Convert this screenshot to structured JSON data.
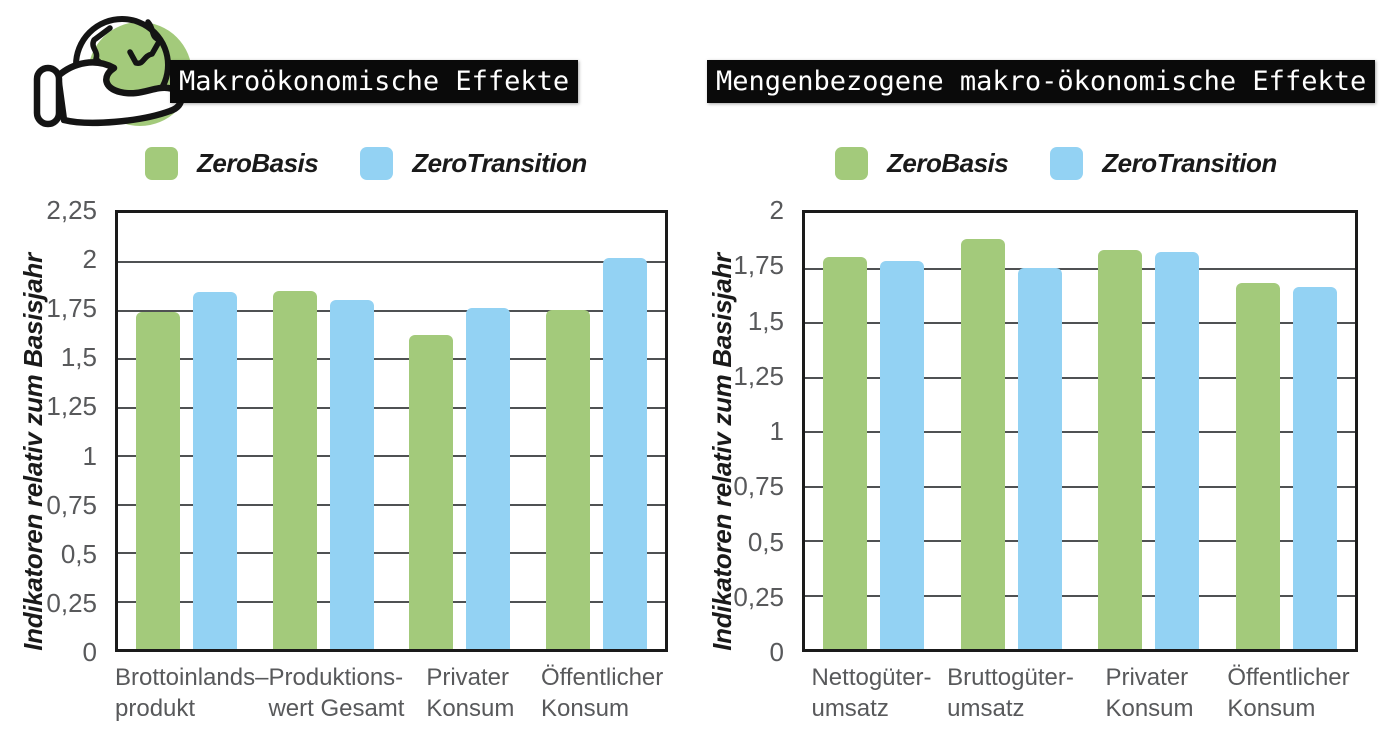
{
  "page": {
    "background": "#ffffff"
  },
  "colors": {
    "series_green": "#a3ca7b",
    "series_blue": "#93d2f3",
    "title_bg": "#0a0a0a",
    "title_text": "#ffffff",
    "axis_text": "#58595b",
    "label_text": "#1a1a1a",
    "gridline": "#4f5153",
    "plot_border": "#1a1a1a"
  },
  "icon": {
    "name": "hand-holding-globe",
    "circle_color": "#a3ca7b",
    "line_color": "#141414"
  },
  "legend": {
    "items": [
      {
        "label": "ZeroBasis",
        "color": "#a3ca7b"
      },
      {
        "label": "ZeroTransition",
        "color": "#93d2f3"
      }
    ]
  },
  "chart_data": [
    {
      "type": "bar",
      "title": "Makroökonomische Effekte",
      "ylabel": "Indikatoren relativ zum Basisjahr",
      "ylim": [
        0,
        2.25
      ],
      "grid": "horizontal",
      "legend_position": "top",
      "yticks": [
        {
          "v": 0,
          "label": "0"
        },
        {
          "v": 0.25,
          "label": "0,25"
        },
        {
          "v": 0.5,
          "label": "0,5"
        },
        {
          "v": 0.75,
          "label": "0,75"
        },
        {
          "v": 1,
          "label": "1"
        },
        {
          "v": 1.25,
          "label": "1,25"
        },
        {
          "v": 1.5,
          "label": "1,5"
        },
        {
          "v": 1.75,
          "label": "1,75"
        },
        {
          "v": 2,
          "label": "2"
        },
        {
          "v": 2.25,
          "label": "2,25"
        }
      ],
      "categories": [
        [
          "Brottoinlands–",
          "produkt"
        ],
        [
          "Produktions-",
          "wert Gesamt"
        ],
        [
          "Privater",
          "Konsum"
        ],
        [
          "Öffentlicher",
          "Konsum"
        ]
      ],
      "series": [
        {
          "name": "ZeroBasis",
          "color": "#a3ca7b",
          "values": [
            1.74,
            1.85,
            1.62,
            1.75
          ]
        },
        {
          "name": "ZeroTransition",
          "color": "#93d2f3",
          "values": [
            1.84,
            1.8,
            1.76,
            2.02
          ]
        }
      ]
    },
    {
      "type": "bar",
      "title": "Mengenbezogene makro-ökonomische Effekte",
      "ylabel": "Indikatoren relativ zum Basisjahr",
      "ylim": [
        0,
        2
      ],
      "grid": "horizontal",
      "legend_position": "top",
      "yticks": [
        {
          "v": 0,
          "label": "0"
        },
        {
          "v": 0.25,
          "label": "0,25"
        },
        {
          "v": 0.5,
          "label": "0,5"
        },
        {
          "v": 0.75,
          "label": "0,75"
        },
        {
          "v": 1,
          "label": "1"
        },
        {
          "v": 1.25,
          "label": "1,25"
        },
        {
          "v": 1.5,
          "label": "1,5"
        },
        {
          "v": 1.75,
          "label": "1,75"
        },
        {
          "v": 2,
          "label": "2"
        }
      ],
      "categories": [
        [
          "Nettogüter-",
          "umsatz"
        ],
        [
          "Bruttogüter-",
          "umsatz"
        ],
        [
          "Privater",
          "Konsum"
        ],
        [
          "Öffentlicher",
          "Konsum"
        ]
      ],
      "series": [
        {
          "name": "ZeroBasis",
          "color": "#a3ca7b",
          "values": [
            1.8,
            1.88,
            1.83,
            1.68
          ]
        },
        {
          "name": "ZeroTransition",
          "color": "#93d2f3",
          "values": [
            1.78,
            1.75,
            1.82,
            1.66
          ]
        }
      ]
    }
  ]
}
